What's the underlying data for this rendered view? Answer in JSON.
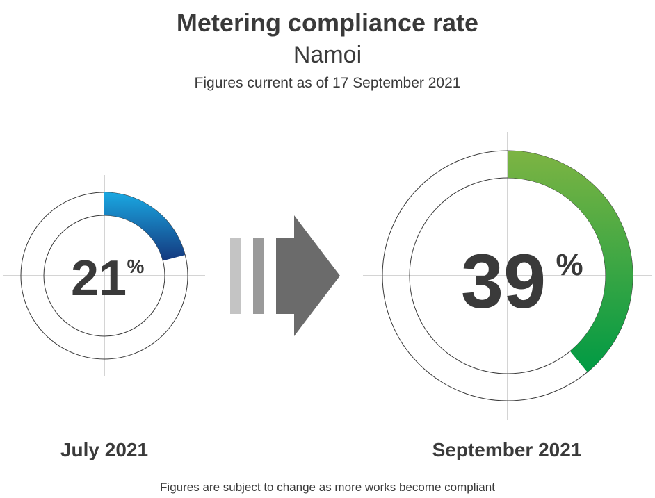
{
  "header": {
    "title": "Metering compliance rate",
    "subtitle": "Namoi",
    "as_of": "Figures current as of 17 September 2021"
  },
  "footnote": "Figures are subject to change as more works become compliant",
  "colors": {
    "july_gradient": [
      "#1aa8e2",
      "#14387e"
    ],
    "september_gradient": [
      "#7db443",
      "#009a44"
    ],
    "arrow_bar_1": "#c4c4c4",
    "arrow_bar_2": "#9a9a9a",
    "arrow_body": "#6b6b6b",
    "text": "#3a3a3a"
  },
  "chart_data": {
    "type": "donut-comparison",
    "unit": "%",
    "items": [
      {
        "period": "July 2021",
        "value": 21,
        "value_label": "21",
        "unit_label": "%"
      },
      {
        "period": "September 2021",
        "value": 39,
        "value_label": "39",
        "unit_label": "%"
      }
    ]
  }
}
